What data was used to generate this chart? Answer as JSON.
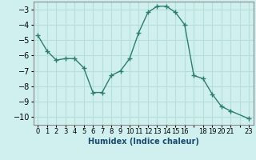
{
  "x": [
    0,
    1,
    2,
    3,
    4,
    5,
    6,
    7,
    8,
    9,
    10,
    11,
    12,
    13,
    14,
    15,
    16,
    17,
    18,
    19,
    20,
    21,
    23
  ],
  "y": [
    -4.7,
    -5.7,
    -6.3,
    -6.2,
    -6.2,
    -6.8,
    -8.4,
    -8.4,
    -7.3,
    -7.0,
    -6.2,
    -4.5,
    -3.2,
    -2.8,
    -2.8,
    -3.2,
    -4.0,
    -7.3,
    -7.5,
    -8.5,
    -9.3,
    -9.6,
    -10.1
  ],
  "xlabel": "Humidex (Indice chaleur)",
  "bg_color": "#cff0ee",
  "grid_color": "#b8deda",
  "line_color": "#2e7d6e",
  "marker_color": "#2e7d6e",
  "ylim": [
    -10.5,
    -2.5
  ],
  "xlim": [
    -0.5,
    23.5
  ],
  "yticks": [
    -10,
    -9,
    -8,
    -7,
    -6,
    -5,
    -4,
    -3
  ],
  "spine_color": "#888888"
}
